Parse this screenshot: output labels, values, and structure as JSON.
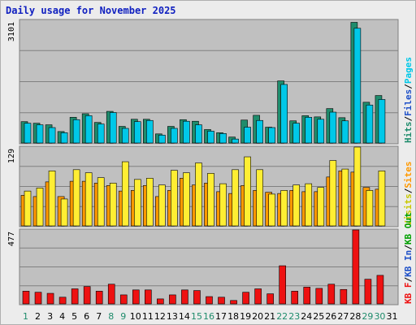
{
  "title": "Daily usage for November 2025",
  "colors": {
    "hits": "#1f8c6c",
    "files": "#00c8e8",
    "pages": "#00c8e8",
    "visits": "#ffee33",
    "sites": "#ff9900",
    "kbf": "#ee1111",
    "panel_bg": "#c0c0c0",
    "grid": "#808080",
    "weekend": "#1f8c6c",
    "weekday": "#000000"
  },
  "chart_data": [
    {
      "type": "bar",
      "max_label": "3101",
      "ylim": [
        0,
        3101
      ],
      "legend_text": [
        "Hits",
        "/",
        "Files",
        "/",
        "Pages"
      ],
      "legend_colors": [
        "#1f8c6c",
        "#000000",
        "#1e50c8",
        "#000000",
        "#00c8e8"
      ],
      "categories": [
        "1",
        "2",
        "3",
        "4",
        "5",
        "6",
        "7",
        "8",
        "9",
        "10",
        "11",
        "12",
        "13",
        "14",
        "15",
        "16",
        "17",
        "18",
        "19",
        "20",
        "21",
        "22",
        "23",
        "24",
        "25",
        "26",
        "27",
        "28",
        "29",
        "30",
        "31"
      ],
      "series": [
        {
          "name": "Hits",
          "values": [
            540,
            500,
            460,
            290,
            650,
            740,
            520,
            800,
            420,
            600,
            600,
            230,
            420,
            590,
            550,
            340,
            260,
            150,
            580,
            700,
            400,
            1570,
            560,
            690,
            660,
            870,
            640,
            3050,
            1030,
            1200,
            0
          ]
        },
        {
          "name": "Files",
          "values": [
            500,
            460,
            390,
            260,
            590,
            690,
            480,
            770,
            370,
            540,
            570,
            200,
            370,
            550,
            460,
            300,
            240,
            100,
            400,
            570,
            390,
            1480,
            500,
            650,
            600,
            780,
            560,
            2900,
            960,
            1100,
            0
          ]
        }
      ]
    },
    {
      "type": "bar",
      "max_label": "129",
      "ylim": [
        0,
        129
      ],
      "legend_text": [
        "Visits",
        "/",
        "Sites"
      ],
      "legend_colors": [
        "#c8c800",
        "#000000",
        "#ff9900"
      ],
      "categories": [
        "1",
        "2",
        "3",
        "4",
        "5",
        "6",
        "7",
        "8",
        "9",
        "10",
        "11",
        "12",
        "13",
        "14",
        "15",
        "16",
        "17",
        "18",
        "19",
        "20",
        "21",
        "22",
        "23",
        "24",
        "25",
        "26",
        "27",
        "28",
        "29",
        "30",
        "31"
      ],
      "series": [
        {
          "name": "Visits",
          "values": [
            50,
            48,
            72,
            48,
            73,
            73,
            70,
            66,
            57,
            58,
            66,
            48,
            58,
            78,
            67,
            70,
            56,
            53,
            66,
            58,
            55,
            53,
            58,
            56,
            56,
            80,
            90,
            88,
            63,
            60,
            0
          ]
        },
        {
          "name": "Sites",
          "values": [
            57,
            62,
            90,
            44,
            92,
            87,
            79,
            70,
            105,
            76,
            78,
            67,
            91,
            87,
            103,
            86,
            69,
            92,
            113,
            92,
            52,
            58,
            67,
            69,
            63,
            107,
            93,
            129,
            58,
            90,
            0
          ]
        }
      ]
    },
    {
      "type": "bar",
      "max_label": "477",
      "ylim": [
        0,
        477
      ],
      "legend_text": [
        "KB F",
        "/",
        "KB In",
        "/",
        "KB Out"
      ],
      "legend_colors": [
        "#ee1111",
        "#000000",
        "#1e50c8",
        "#000000",
        "#00a000"
      ],
      "categories": [
        "1",
        "2",
        "3",
        "4",
        "5",
        "6",
        "7",
        "8",
        "9",
        "10",
        "11",
        "12",
        "13",
        "14",
        "15",
        "16",
        "17",
        "18",
        "19",
        "20",
        "21",
        "22",
        "23",
        "24",
        "25",
        "26",
        "27",
        "28",
        "29",
        "30",
        "31"
      ],
      "series": [
        {
          "name": "KB F",
          "values": [
            82,
            75,
            68,
            43,
            97,
            112,
            82,
            127,
            58,
            90,
            90,
            32,
            58,
            90,
            86,
            47,
            43,
            22,
            75,
            97,
            65,
            246,
            82,
            108,
            100,
            127,
            93,
            477,
            159,
            184,
            0
          ]
        }
      ]
    }
  ],
  "days": [
    "1",
    "2",
    "3",
    "4",
    "5",
    "6",
    "7",
    "8",
    "9",
    "10",
    "11",
    "12",
    "13",
    "14",
    "15",
    "16",
    "17",
    "18",
    "19",
    "20",
    "21",
    "22",
    "23",
    "24",
    "25",
    "26",
    "27",
    "28",
    "29",
    "30",
    "31"
  ],
  "weekend_days": [
    "1",
    "8",
    "9",
    "15",
    "16",
    "22",
    "23",
    "29",
    "30"
  ]
}
